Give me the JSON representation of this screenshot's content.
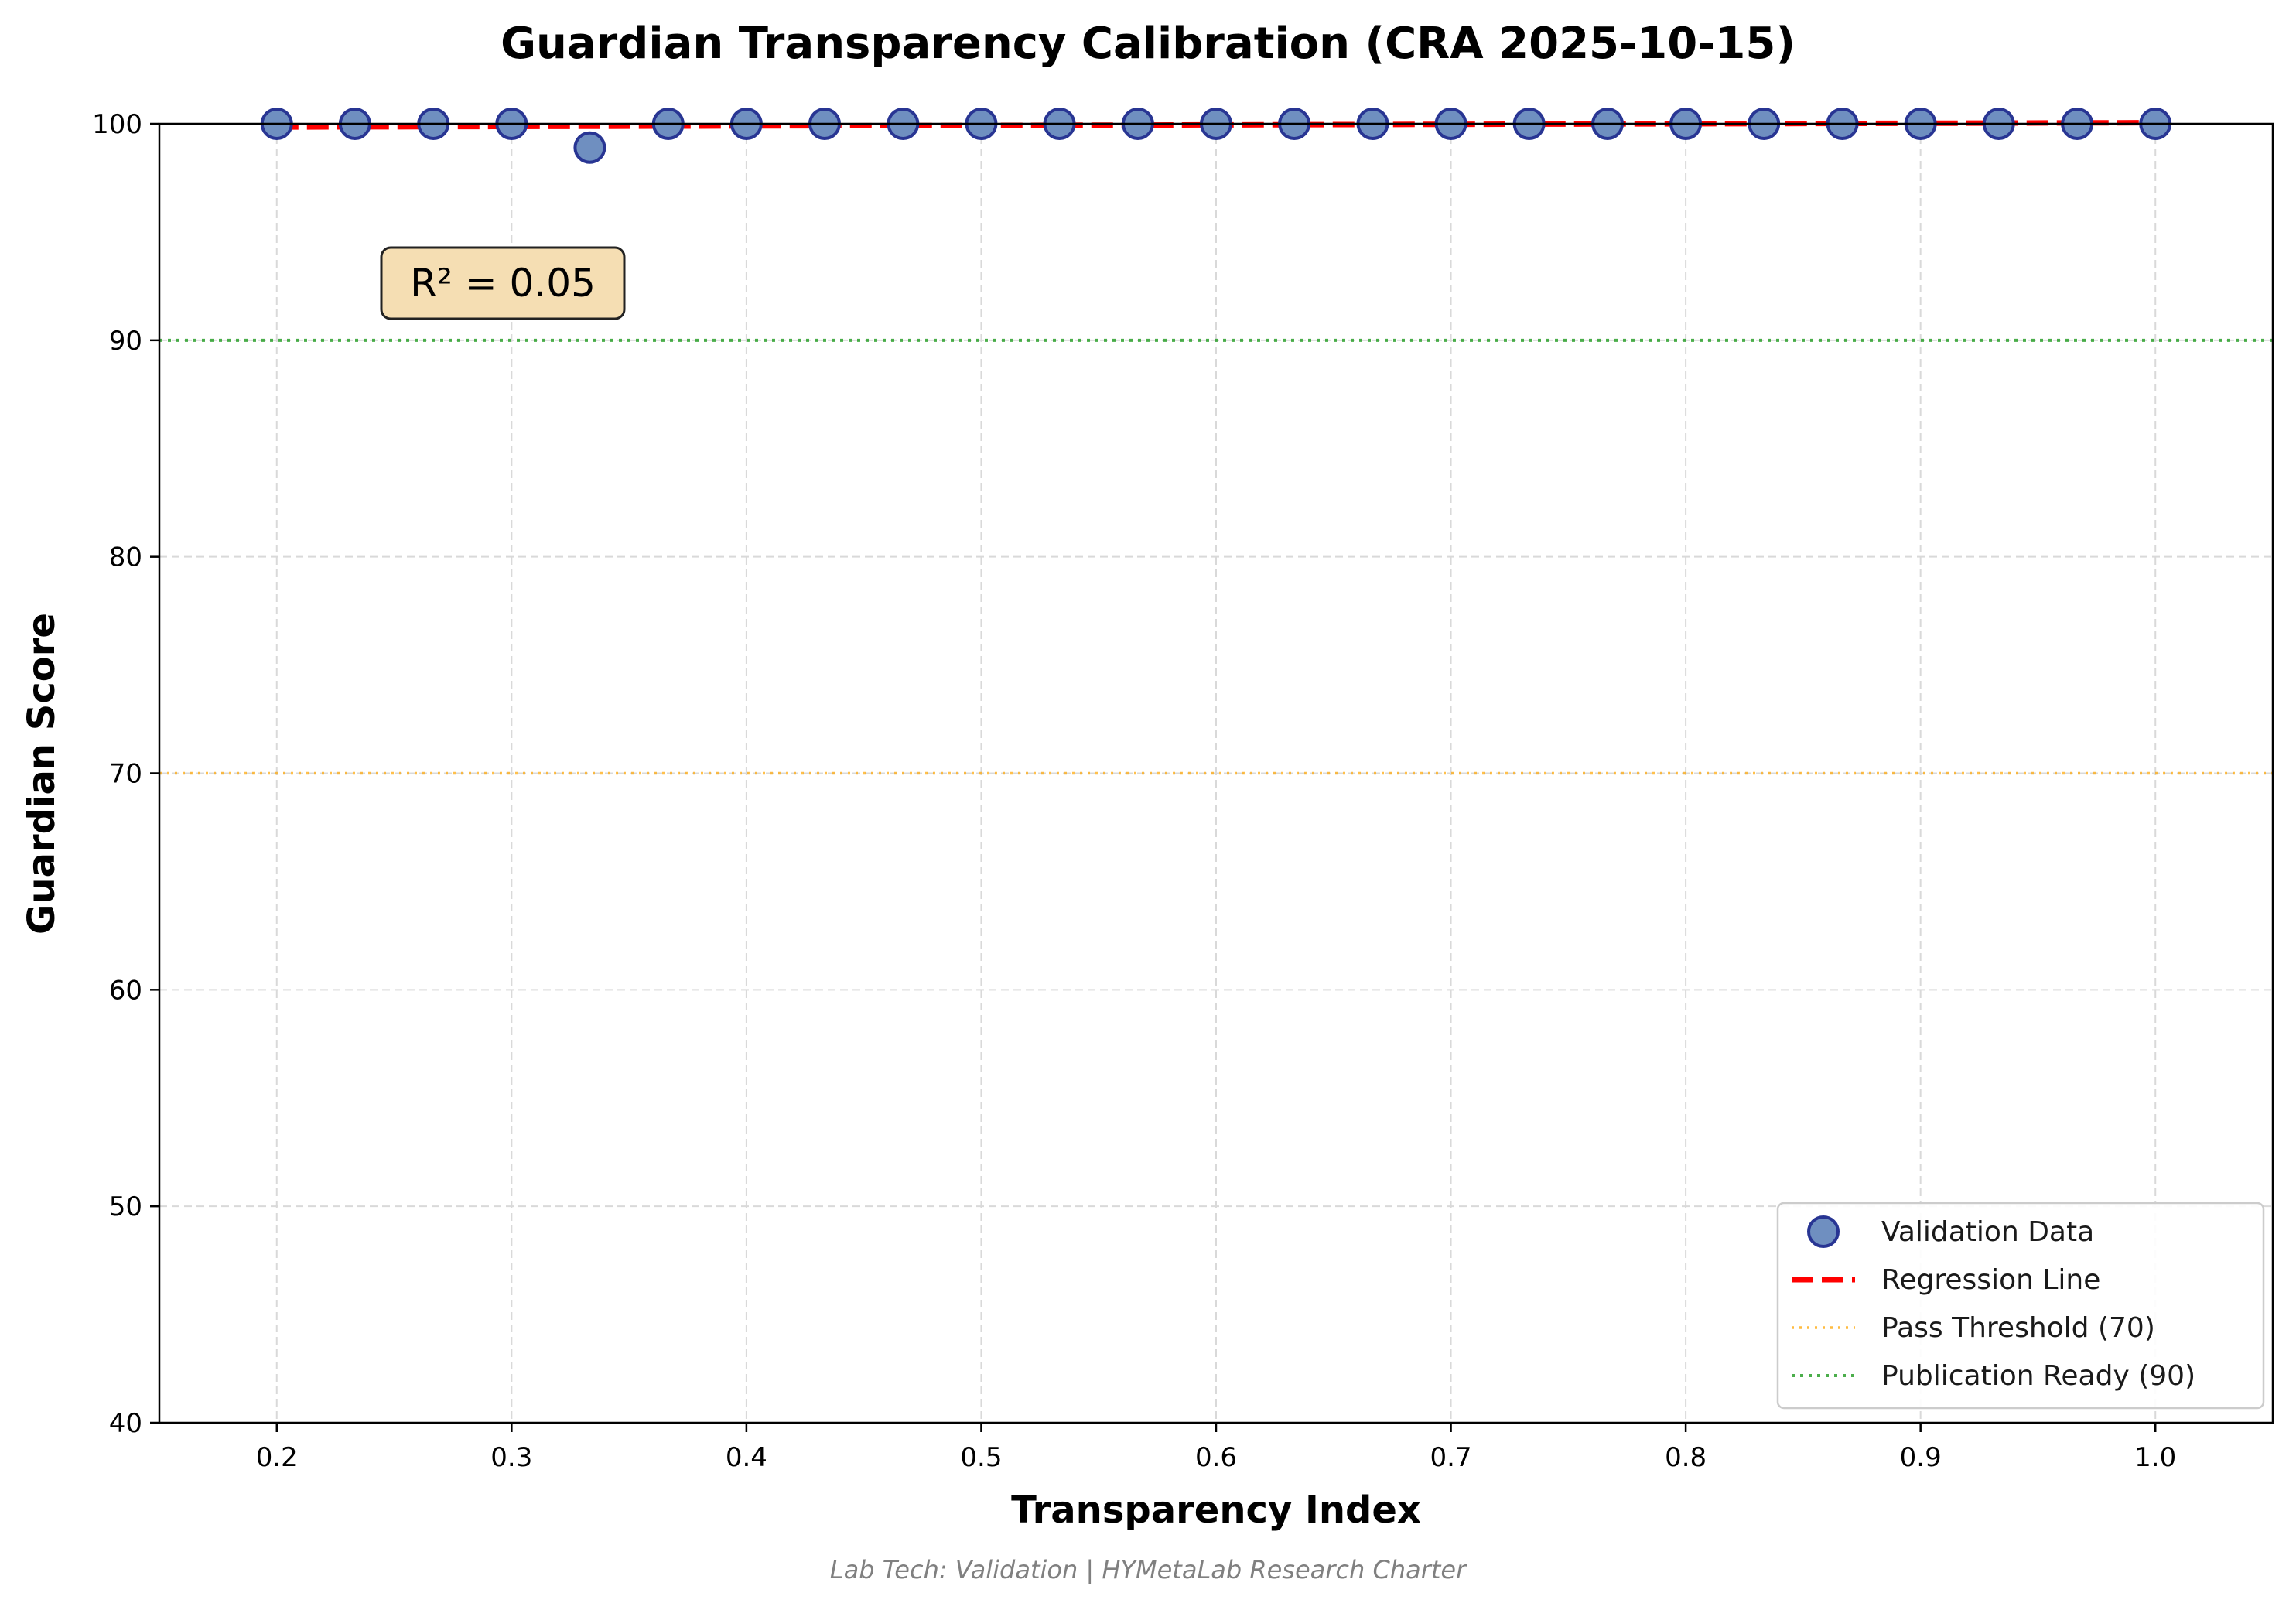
{
  "chart_data": {
    "type": "scatter",
    "title": "Guardian Transparency Calibration (CRA 2025-10-15)",
    "xlabel": "Transparency Index",
    "ylabel": "Guardian Score",
    "xlim": [
      0.15,
      1.05
    ],
    "ylim": [
      40,
      100
    ],
    "xticks": [
      0.2,
      0.3,
      0.4,
      0.5,
      0.6,
      0.7,
      0.8,
      0.9,
      1.0
    ],
    "xtick_labels": [
      "0.2",
      "0.3",
      "0.4",
      "0.5",
      "0.6",
      "0.7",
      "0.8",
      "0.9",
      "1.0"
    ],
    "yticks": [
      40,
      50,
      60,
      70,
      80,
      90,
      100
    ],
    "ytick_labels": [
      "40",
      "50",
      "60",
      "70",
      "80",
      "90",
      "100"
    ],
    "grid": true,
    "series": [
      {
        "name": "Validation Data",
        "kind": "scatter",
        "color": "#6f8fc0",
        "edge_color": "#283593",
        "x": [
          0.2,
          0.2333,
          0.2667,
          0.3,
          0.3333,
          0.3667,
          0.4,
          0.4333,
          0.4667,
          0.5,
          0.5333,
          0.5667,
          0.6,
          0.6333,
          0.6667,
          0.7,
          0.7333,
          0.7667,
          0.8,
          0.8333,
          0.8667,
          0.9,
          0.9333,
          0.9667,
          1.0
        ],
        "y": [
          100,
          100,
          100,
          100,
          98.9,
          100,
          100,
          100,
          100,
          100,
          100,
          100,
          100,
          100,
          100,
          100,
          100,
          100,
          100,
          100,
          100,
          100,
          100,
          100,
          100
        ]
      },
      {
        "name": "Regression Line",
        "kind": "line",
        "style": "dashed",
        "color": "#ff0000",
        "x": [
          0.2,
          1.0
        ],
        "y": [
          99.85,
          100.05
        ]
      }
    ],
    "hlines": [
      {
        "name": "Pass Threshold (70)",
        "y": 70,
        "style": "dotted",
        "color": "#ffa500"
      },
      {
        "name": "Publication Ready (90)",
        "y": 90,
        "style": "dotted",
        "color": "#2ca02c"
      }
    ],
    "annotation": {
      "text": "R² = 0.05",
      "box_color": "#f5deb3"
    },
    "legend": {
      "placement": "lower-right",
      "entries": [
        "Validation Data",
        "Regression Line",
        "Pass Threshold (70)",
        "Publication Ready (90)"
      ]
    },
    "footer": "Lab Tech: Validation | HYMetaLab Research Charter"
  }
}
